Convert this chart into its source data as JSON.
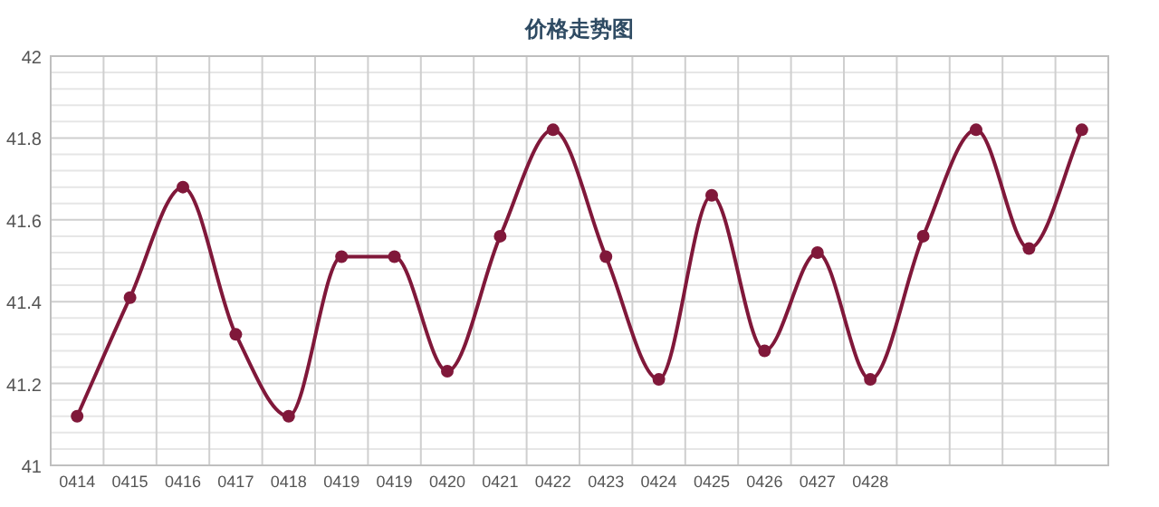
{
  "chart_data": {
    "type": "line",
    "title": "价格走势图",
    "categories": [
      "0414",
      "0415",
      "0416",
      "0417",
      "0418",
      "0419",
      "0419",
      "0420",
      "0421",
      "0422",
      "0423",
      "0424",
      "0425",
      "0426",
      "0427",
      "0428",
      null,
      null,
      null,
      null
    ],
    "series": [
      {
        "color": "#80183a",
        "values": [
          41.12,
          41.41,
          41.68,
          41.32,
          41.12,
          41.51,
          41.51,
          41.23,
          41.56,
          41.82,
          41.51,
          41.21,
          41.66,
          41.28,
          41.52,
          41.21,
          41.56,
          41.82,
          41.53,
          41.82
        ]
      }
    ],
    "ylim": [
      41,
      42
    ],
    "yticks": [
      41,
      {
        "value": 41.04,
        "label": null
      },
      {
        "value": 41.08,
        "label": null
      },
      {
        "value": 41.12,
        "label": null
      },
      {
        "value": 41.16,
        "label": null
      },
      41.2,
      {
        "value": 41.24,
        "label": null
      },
      {
        "value": 41.28,
        "label": null
      },
      {
        "value": 41.32,
        "label": null
      },
      {
        "value": 41.36,
        "label": null
      },
      41.4,
      {
        "value": 41.44,
        "label": null
      },
      {
        "value": 41.48,
        "label": null
      },
      {
        "value": 41.52,
        "label": null
      },
      {
        "value": 41.56,
        "label": null
      },
      41.6,
      {
        "value": 41.64,
        "label": null
      },
      {
        "value": 41.68,
        "label": null
      },
      {
        "value": 41.72,
        "label": null
      },
      {
        "value": 41.76,
        "label": null
      },
      41.8,
      {
        "value": 41.84,
        "label": null
      },
      {
        "value": 41.88,
        "label": null
      },
      {
        "value": 41.92,
        "label": null
      },
      {
        "value": 41.96,
        "label": null
      },
      42
    ],
    "grid": true,
    "marker": "circle",
    "line_style": "solid"
  }
}
